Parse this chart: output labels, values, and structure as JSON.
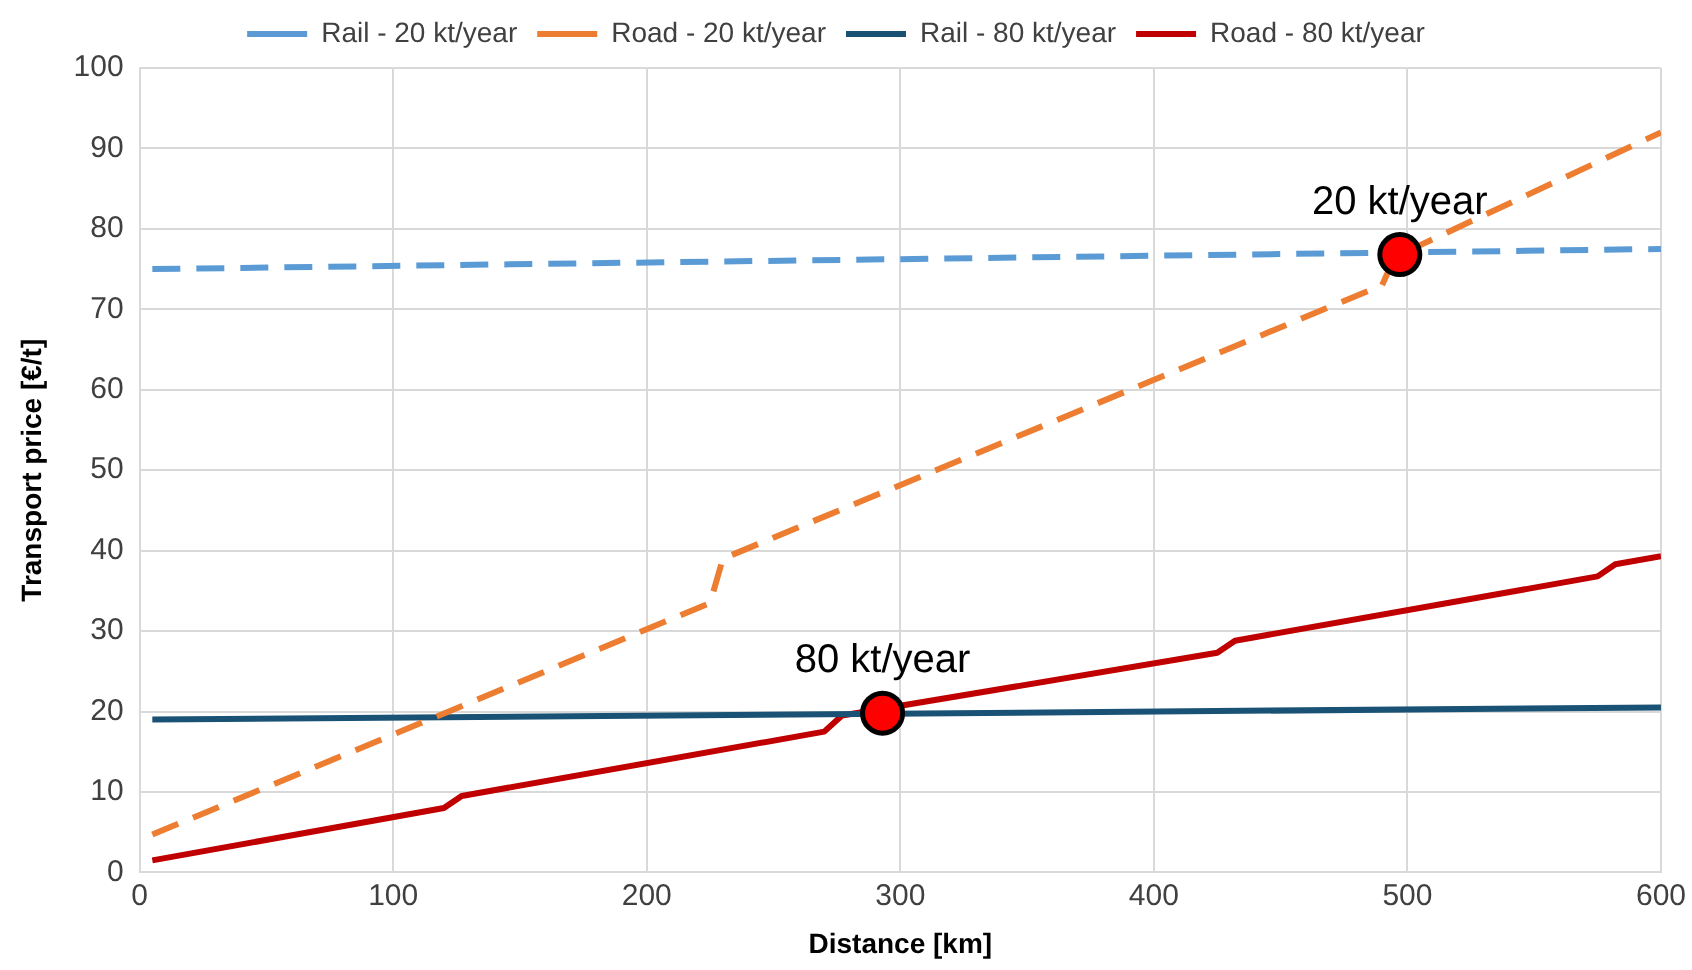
{
  "chart_data": {
    "type": "line",
    "xlabel": "Distance [km]",
    "ylabel": "Transport price [€/t]",
    "xlim": [
      0,
      600
    ],
    "xticks": [
      0,
      100,
      200,
      300,
      400,
      500,
      600
    ],
    "ylim": [
      0,
      100
    ],
    "yticks": [
      0,
      10,
      20,
      30,
      40,
      50,
      60,
      70,
      80,
      90,
      100
    ],
    "grid": true,
    "legend": "top",
    "marker": "none",
    "series": [
      {
        "name": "Rail - 20 kt/year",
        "color": "#5b9bd5",
        "line_style": "dashed",
        "x": [
          5,
          600
        ],
        "values": [
          75,
          77.5
        ]
      },
      {
        "name": "Road - 20 kt/year",
        "color": "#ed7d31",
        "line_style": "dashed",
        "x": [
          5,
          225,
          230,
          490,
          495,
          600
        ],
        "values": [
          4.7,
          33.5,
          39,
          73,
          76.5,
          92
        ]
      },
      {
        "name": "Rail - 80 kt/year",
        "color": "#1a5276",
        "line_style": "solid",
        "x": [
          5,
          600
        ],
        "values": [
          19,
          20.5
        ]
      },
      {
        "name": "Road - 80 kt/year",
        "color": "#c00000",
        "line_style": "solid",
        "x": [
          5,
          120,
          127,
          270,
          277,
          425,
          432,
          575,
          582,
          600
        ],
        "values": [
          1.5,
          8,
          9.5,
          17.5,
          19.5,
          27.3,
          28.8,
          36.8,
          38.3,
          39.3
        ]
      },
      {
        "type": "scatter",
        "color": "#ff0000",
        "marker": "circle",
        "x": [
          293,
          497
        ],
        "values": [
          19.8,
          76.8
        ]
      }
    ],
    "annotations": [
      {
        "text": "80 kt/year",
        "x": 293,
        "y": 19.8
      },
      {
        "text": "20 kt/year",
        "x": 497,
        "y": 76.8
      }
    ]
  }
}
